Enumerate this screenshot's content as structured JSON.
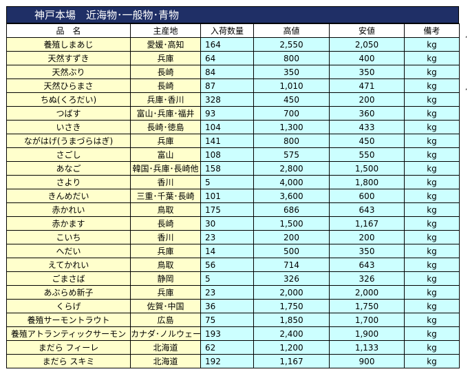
{
  "title": "神戸本場　近海物･一般物･青物",
  "headers": [
    "品　名",
    "主産地",
    "入荷数量",
    "高値",
    "安値",
    "備考"
  ],
  "rows": [
    [
      "養殖しまあじ",
      "愛媛･高知",
      "164",
      "2,550",
      "2,050",
      "kg"
    ],
    [
      "天然すずき",
      "兵庫",
      "64",
      "800",
      "400",
      "kg"
    ],
    [
      "天然ぶり",
      "長崎",
      "84",
      "350",
      "350",
      "kg"
    ],
    [
      "天然ひらまさ",
      "長崎",
      "87",
      "1,010",
      "471",
      "kg"
    ],
    [
      "ちぬ(くろだい)",
      "兵庫･香川",
      "328",
      "450",
      "200",
      "kg"
    ],
    [
      "つばす",
      "富山･兵庫･福井",
      "93",
      "700",
      "360",
      "kg"
    ],
    [
      "いさき",
      "長崎･徳島",
      "104",
      "1,300",
      "433",
      "kg"
    ],
    [
      "ながはげ(うまづらはぎ)",
      "兵庫",
      "141",
      "800",
      "450",
      "kg"
    ],
    [
      "さごし",
      "富山",
      "108",
      "575",
      "550",
      "kg"
    ],
    [
      "あなご",
      "韓国･兵庫･長崎他",
      "158",
      "2,800",
      "1,500",
      "kg"
    ],
    [
      "さより",
      "香川",
      "5",
      "4,000",
      "1,800",
      "kg"
    ],
    [
      "きんめだい",
      "三重･千葉･長崎",
      "101",
      "3,600",
      "600",
      "kg"
    ],
    [
      "赤かれい",
      "鳥取",
      "175",
      "686",
      "643",
      "kg"
    ],
    [
      "赤かます",
      "長崎",
      "30",
      "1,500",
      "1,167",
      "kg"
    ],
    [
      "こいち",
      "香川",
      "23",
      "200",
      "200",
      "kg"
    ],
    [
      "へだい",
      "兵庫",
      "14",
      "500",
      "350",
      "kg"
    ],
    [
      "えてかれい",
      "鳥取",
      "56",
      "714",
      "643",
      "kg"
    ],
    [
      "ごまさば",
      "静岡",
      "5",
      "326",
      "326",
      "kg"
    ],
    [
      "あぶらめ新子",
      "兵庫",
      "23",
      "2,000",
      "2,000",
      "kg"
    ],
    [
      "くらげ",
      "佐賀･中国",
      "36",
      "1,750",
      "1,750",
      "kg"
    ],
    [
      "養殖サーモントラウト",
      "広島",
      "75",
      "1,850",
      "1,700",
      "kg"
    ],
    [
      "養殖アトランティックサーモン",
      "カナダ･ノルウェー",
      "193",
      "2,400",
      "1,900",
      "kg"
    ],
    [
      "まだら フィーレ",
      "北海道",
      "62",
      "1,200",
      "1,133",
      "kg"
    ],
    [
      "まだら スキミ",
      "北海道",
      "192",
      "1,167",
      "900",
      "kg"
    ]
  ]
}
